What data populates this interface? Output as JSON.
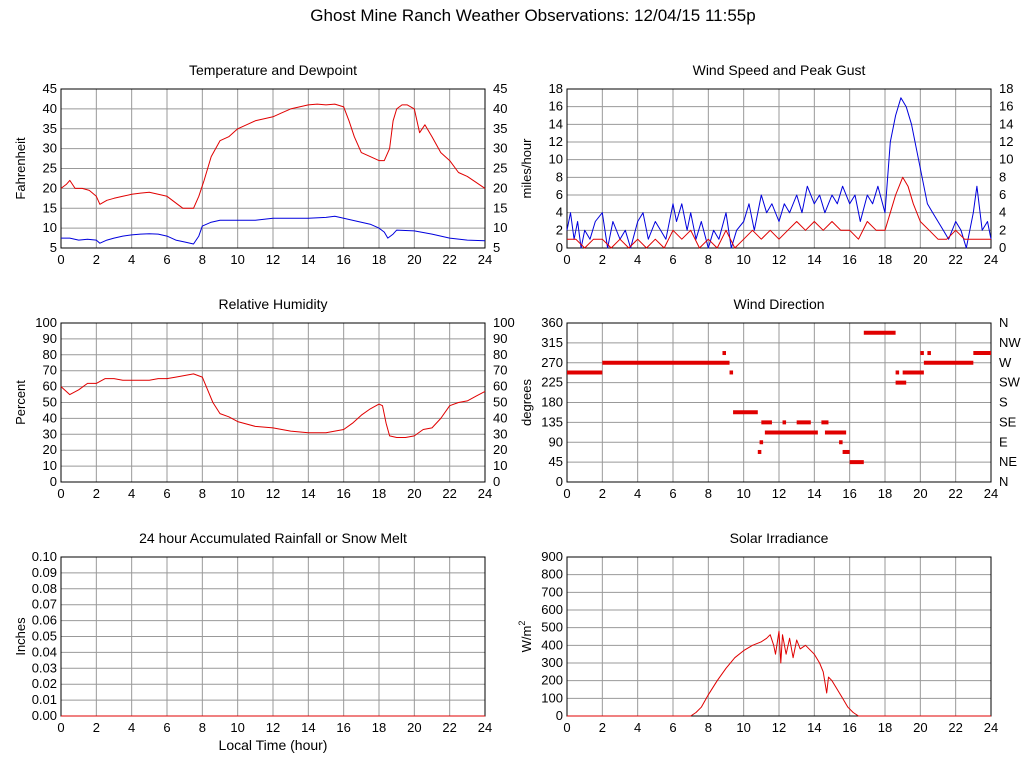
{
  "page": {
    "title": "Ghost Mine Ranch Weather Observations: 12/04/15 11:55p"
  },
  "colors": {
    "grid": "#999999",
    "axis": "#000000",
    "series_red": "#e00000",
    "series_blue": "#0000dd"
  },
  "chart_data": [
    {
      "id": "temperature",
      "type": "line",
      "title": "Temperature and Dewpoint",
      "xlabel": "",
      "ylabel": "Fahrenheit",
      "xlim": [
        0,
        24
      ],
      "ylim": [
        5,
        45
      ],
      "x_ticks": [
        0,
        2,
        4,
        6,
        8,
        10,
        12,
        14,
        16,
        18,
        20,
        22,
        24
      ],
      "y_ticks": [
        5,
        10,
        15,
        20,
        25,
        30,
        35,
        40,
        45
      ],
      "right_axis": "mirror",
      "grid": true,
      "series": [
        {
          "color": "red",
          "x": [
            0,
            0.3,
            0.5,
            0.8,
            1.2,
            1.6,
            2.0,
            2.2,
            2.6,
            3.0,
            3.5,
            4.0,
            4.5,
            5.0,
            5.5,
            6.0,
            6.3,
            6.6,
            6.9,
            7.2,
            7.5,
            7.8,
            8.1,
            8.5,
            9.0,
            9.5,
            10.0,
            10.5,
            11.0,
            11.5,
            12.0,
            12.5,
            13.0,
            13.5,
            14.0,
            14.5,
            15.0,
            15.5,
            16.0,
            16.3,
            16.6,
            17.0,
            17.5,
            18.0,
            18.3,
            18.6,
            18.8,
            19.0,
            19.3,
            19.6,
            20.0,
            20.3,
            20.6,
            21.0,
            21.5,
            22.0,
            22.5,
            23.0,
            23.5,
            24.0
          ],
          "y": [
            20,
            21,
            22,
            20,
            20,
            19.5,
            18,
            16,
            17,
            17.5,
            18,
            18.5,
            18.8,
            19,
            18.5,
            18,
            17,
            16,
            15,
            15,
            15,
            18,
            22,
            28,
            32,
            33,
            35,
            36,
            37,
            37.5,
            38,
            39,
            40,
            40.5,
            41,
            41.2,
            41,
            41.2,
            40.5,
            37,
            33,
            29,
            28,
            27,
            27,
            30,
            37,
            40,
            41,
            41,
            40,
            34,
            36,
            33,
            29,
            27,
            24,
            23,
            21.5,
            20
          ]
        },
        {
          "color": "blue",
          "x": [
            0,
            0.5,
            1.0,
            1.5,
            2.0,
            2.2,
            2.6,
            3.0,
            3.5,
            4.0,
            4.5,
            5.0,
            5.5,
            6.0,
            6.5,
            7.0,
            7.5,
            7.8,
            8.0,
            8.5,
            9.0,
            10.0,
            11.0,
            12.0,
            13.0,
            14.0,
            15.0,
            15.5,
            16.0,
            16.5,
            17.0,
            17.5,
            18.0,
            18.3,
            18.5,
            18.8,
            19.0,
            20.0,
            21.0,
            22.0,
            23.0,
            24.0
          ],
          "y": [
            7.5,
            7.5,
            7.0,
            7.2,
            7.0,
            6.2,
            7.0,
            7.5,
            8.0,
            8.3,
            8.5,
            8.6,
            8.5,
            8.0,
            7.0,
            6.5,
            6.0,
            8.0,
            10.5,
            11.5,
            12.0,
            12.0,
            12.0,
            12.5,
            12.5,
            12.5,
            12.7,
            13.0,
            12.5,
            12.0,
            11.5,
            11.0,
            10.0,
            9.0,
            7.5,
            8.5,
            9.5,
            9.3,
            8.5,
            7.5,
            7.0,
            6.8
          ]
        }
      ]
    },
    {
      "id": "wind_speed",
      "type": "line",
      "title": "Wind Speed and Peak Gust",
      "xlabel": "",
      "ylabel": "miles/hour",
      "xlim": [
        0,
        24
      ],
      "ylim": [
        0,
        18
      ],
      "x_ticks": [
        0,
        2,
        4,
        6,
        8,
        10,
        12,
        14,
        16,
        18,
        20,
        22,
        24
      ],
      "y_ticks": [
        0,
        2,
        4,
        6,
        8,
        10,
        12,
        14,
        16,
        18
      ],
      "right_axis": "mirror",
      "grid": true,
      "series": [
        {
          "color": "blue",
          "x": [
            0,
            0.2,
            0.4,
            0.6,
            0.8,
            1.0,
            1.3,
            1.6,
            2.0,
            2.3,
            2.6,
            3.0,
            3.3,
            3.6,
            4.0,
            4.3,
            4.6,
            5.0,
            5.3,
            5.6,
            6.0,
            6.2,
            6.5,
            6.8,
            7.0,
            7.3,
            7.6,
            8.0,
            8.3,
            8.6,
            9.0,
            9.3,
            9.6,
            10.0,
            10.3,
            10.6,
            11.0,
            11.3,
            11.6,
            12.0,
            12.3,
            12.6,
            13.0,
            13.3,
            13.6,
            14.0,
            14.3,
            14.6,
            15.0,
            15.3,
            15.6,
            16.0,
            16.3,
            16.6,
            17.0,
            17.3,
            17.6,
            18.0,
            18.3,
            18.6,
            18.9,
            19.2,
            19.5,
            19.8,
            20.1,
            20.4,
            20.7,
            21.0,
            21.3,
            21.6,
            22.0,
            22.3,
            22.6,
            23.0,
            23.2,
            23.5,
            23.8,
            24.0
          ],
          "y": [
            2,
            4,
            1,
            3,
            0,
            2,
            1,
            3,
            4,
            0,
            3,
            1,
            2,
            0,
            3,
            4,
            1,
            3,
            2,
            1,
            5,
            3,
            5,
            2,
            4,
            1,
            3,
            0,
            2,
            1,
            4,
            0,
            2,
            3,
            5,
            2,
            6,
            4,
            5,
            3,
            5,
            4,
            6,
            4,
            7,
            5,
            6,
            4,
            6,
            5,
            7,
            5,
            6,
            3,
            6,
            5,
            7,
            4,
            12,
            15,
            17,
            16,
            14,
            11,
            8,
            5,
            4,
            3,
            2,
            1,
            3,
            2,
            0,
            4,
            7,
            2,
            3,
            1
          ]
        },
        {
          "color": "red",
          "x": [
            0,
            0.5,
            1.0,
            1.5,
            2.0,
            2.5,
            3.0,
            3.5,
            4.0,
            4.5,
            5.0,
            5.5,
            6.0,
            6.5,
            7.0,
            7.5,
            8.0,
            8.5,
            9.0,
            9.5,
            10.0,
            10.5,
            11.0,
            11.5,
            12.0,
            12.5,
            13.0,
            13.5,
            14.0,
            14.5,
            15.0,
            15.5,
            16.0,
            16.5,
            17.0,
            17.5,
            18.0,
            18.3,
            18.6,
            19.0,
            19.3,
            19.6,
            20.0,
            20.5,
            21.0,
            21.5,
            22.0,
            22.5,
            23.0,
            23.5,
            24.0
          ],
          "y": [
            1,
            1,
            0,
            1,
            1,
            0,
            1,
            0,
            1,
            0,
            1,
            0,
            2,
            1,
            2,
            0,
            1,
            0,
            2,
            0,
            1,
            2,
            1,
            2,
            1,
            2,
            3,
            2,
            3,
            2,
            3,
            2,
            2,
            1,
            3,
            2,
            2,
            4,
            6,
            8,
            7,
            5,
            3,
            2,
            1,
            1,
            2,
            1,
            1,
            1,
            1
          ]
        }
      ]
    },
    {
      "id": "humidity",
      "type": "line",
      "title": "Relative Humidity",
      "xlabel": "",
      "ylabel": "Percent",
      "xlim": [
        0,
        24
      ],
      "ylim": [
        0,
        100
      ],
      "x_ticks": [
        0,
        2,
        4,
        6,
        8,
        10,
        12,
        14,
        16,
        18,
        20,
        22,
        24
      ],
      "y_ticks": [
        0,
        10,
        20,
        30,
        40,
        50,
        60,
        70,
        80,
        90,
        100
      ],
      "right_axis": "mirror",
      "grid": true,
      "series": [
        {
          "color": "red",
          "x": [
            0,
            0.5,
            1.0,
            1.5,
            2.0,
            2.5,
            3.0,
            3.5,
            4.0,
            4.5,
            5.0,
            5.5,
            6.0,
            6.5,
            7.0,
            7.5,
            8.0,
            8.3,
            8.6,
            9.0,
            9.5,
            10.0,
            11.0,
            12.0,
            13.0,
            14.0,
            15.0,
            15.5,
            16.0,
            16.5,
            17.0,
            17.5,
            18.0,
            18.2,
            18.4,
            18.6,
            19.0,
            19.5,
            20.0,
            20.5,
            21.0,
            21.5,
            22.0,
            22.5,
            23.0,
            23.5,
            24.0
          ],
          "y": [
            60,
            55,
            58,
            62,
            62,
            65,
            65,
            64,
            64,
            64,
            64,
            65,
            65,
            66,
            67,
            68,
            66,
            58,
            50,
            43,
            41,
            38,
            35,
            34,
            32,
            31,
            31,
            32,
            33,
            37,
            42,
            46,
            49,
            48,
            37,
            29,
            28,
            28,
            29,
            33,
            34,
            40,
            48,
            50,
            51,
            54,
            57
          ]
        }
      ]
    },
    {
      "id": "wind_direction",
      "type": "scatter",
      "title": "Wind Direction",
      "xlabel": "",
      "ylabel": "degrees",
      "xlim": [
        0,
        24
      ],
      "ylim": [
        0,
        360
      ],
      "x_ticks": [
        0,
        2,
        4,
        6,
        8,
        10,
        12,
        14,
        16,
        18,
        20,
        22,
        24
      ],
      "y_ticks": [
        0,
        45,
        90,
        135,
        180,
        225,
        270,
        315,
        360
      ],
      "right_labels": [
        "N",
        "NE",
        "E",
        "SE",
        "S",
        "SW",
        "W",
        "NW",
        "N"
      ],
      "grid": true,
      "segments": [
        {
          "x": [
            0.0,
            2.0
          ],
          "y": 248
        },
        {
          "x": [
            2.0,
            9.2
          ],
          "y": 270
        },
        {
          "x": [
            8.8,
            9.0
          ],
          "y": 292
        },
        {
          "x": [
            9.2,
            9.4
          ],
          "y": 248
        },
        {
          "x": [
            9.4,
            10.8
          ],
          "y": 158
        },
        {
          "x": [
            10.8,
            11.0
          ],
          "y": 68
        },
        {
          "x": [
            10.9,
            11.1
          ],
          "y": 90
        },
        {
          "x": [
            11.0,
            11.6
          ],
          "y": 135
        },
        {
          "x": [
            11.2,
            14.2
          ],
          "y": 112
        },
        {
          "x": [
            12.2,
            12.4
          ],
          "y": 135
        },
        {
          "x": [
            13.0,
            13.8
          ],
          "y": 135
        },
        {
          "x": [
            14.4,
            14.8
          ],
          "y": 135
        },
        {
          "x": [
            14.6,
            15.8
          ],
          "y": 112
        },
        {
          "x": [
            15.4,
            15.6
          ],
          "y": 90
        },
        {
          "x": [
            15.6,
            16.0
          ],
          "y": 68
        },
        {
          "x": [
            16.0,
            16.8
          ],
          "y": 45
        },
        {
          "x": [
            16.8,
            18.6
          ],
          "y": 338
        },
        {
          "x": [
            18.6,
            18.8
          ],
          "y": 248
        },
        {
          "x": [
            18.6,
            19.2
          ],
          "y": 225
        },
        {
          "x": [
            19.0,
            20.2
          ],
          "y": 248
        },
        {
          "x": [
            20.0,
            20.2
          ],
          "y": 292
        },
        {
          "x": [
            20.4,
            20.6
          ],
          "y": 292
        },
        {
          "x": [
            20.2,
            23.0
          ],
          "y": 270
        },
        {
          "x": [
            23.0,
            24.0
          ],
          "y": 292
        }
      ]
    },
    {
      "id": "rainfall",
      "type": "line",
      "title": "24 hour Accumulated Rainfall or Snow Melt",
      "xlabel": "Local Time (hour)",
      "ylabel": "Inches",
      "xlim": [
        0,
        24
      ],
      "ylim": [
        0,
        0.1
      ],
      "x_ticks": [
        0,
        2,
        4,
        6,
        8,
        10,
        12,
        14,
        16,
        18,
        20,
        22,
        24
      ],
      "y_ticks": [
        "0.00",
        "0.01",
        "0.02",
        "0.03",
        "0.04",
        "0.05",
        "0.06",
        "0.07",
        "0.08",
        "0.09",
        "0.10"
      ],
      "grid": true,
      "series": [
        {
          "color": "red",
          "x": [
            0,
            24
          ],
          "y": [
            0,
            0
          ]
        }
      ]
    },
    {
      "id": "solar",
      "type": "line",
      "title": "Solar Irradiance",
      "xlabel": "",
      "ylabel": "W/m",
      "ylabel_sup": "2",
      "xlim": [
        0,
        24
      ],
      "ylim": [
        0,
        900
      ],
      "x_ticks": [
        0,
        2,
        4,
        6,
        8,
        10,
        12,
        14,
        16,
        18,
        20,
        22,
        24
      ],
      "y_ticks": [
        0,
        100,
        200,
        300,
        400,
        500,
        600,
        700,
        800,
        900
      ],
      "grid": true,
      "series": [
        {
          "color": "red",
          "x": [
            0,
            7.0,
            7.3,
            7.6,
            8.0,
            8.5,
            9.0,
            9.5,
            10.0,
            10.5,
            11.0,
            11.3,
            11.5,
            11.7,
            11.8,
            12.0,
            12.1,
            12.2,
            12.4,
            12.6,
            12.8,
            13.0,
            13.2,
            13.5,
            14.0,
            14.3,
            14.5,
            14.7,
            14.8,
            15.0,
            15.3,
            15.6,
            15.9,
            16.2,
            16.5,
            24.0
          ],
          "y": [
            0,
            0,
            20,
            50,
            120,
            200,
            270,
            330,
            370,
            400,
            420,
            440,
            460,
            400,
            350,
            480,
            300,
            460,
            350,
            440,
            330,
            430,
            380,
            400,
            350,
            300,
            250,
            130,
            220,
            200,
            150,
            100,
            50,
            20,
            0,
            0
          ]
        }
      ]
    }
  ]
}
